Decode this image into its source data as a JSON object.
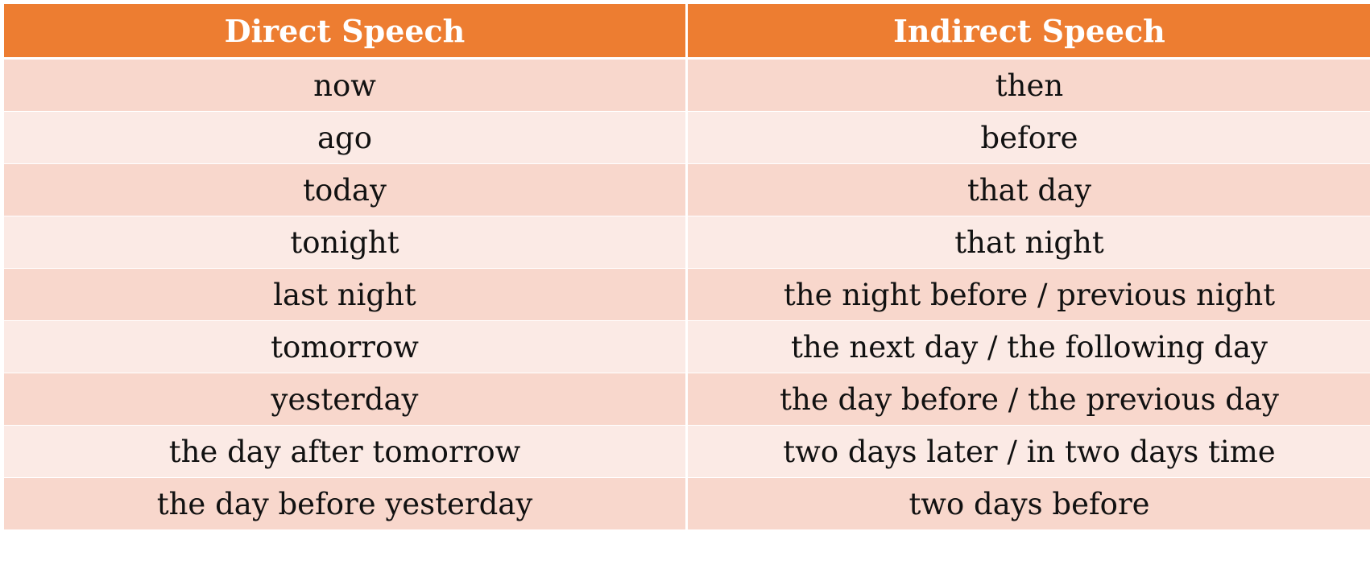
{
  "colors": {
    "header_bg": "#ed7d31",
    "row_dark": "#f8d7cc",
    "row_light": "#fbeae5"
  },
  "table": {
    "headers": [
      "Direct Speech",
      "Indirect Speech"
    ],
    "rows": [
      [
        "now",
        "then"
      ],
      [
        "ago",
        "before"
      ],
      [
        "today",
        "that day"
      ],
      [
        "tonight",
        "that night"
      ],
      [
        "last night",
        "the night before / previous night"
      ],
      [
        "tomorrow",
        "the next day / the following day"
      ],
      [
        "yesterday",
        "the day before / the previous day"
      ],
      [
        "the day after tomorrow",
        "two days later / in two days time"
      ],
      [
        "the day before yesterday",
        "two days before"
      ]
    ]
  }
}
